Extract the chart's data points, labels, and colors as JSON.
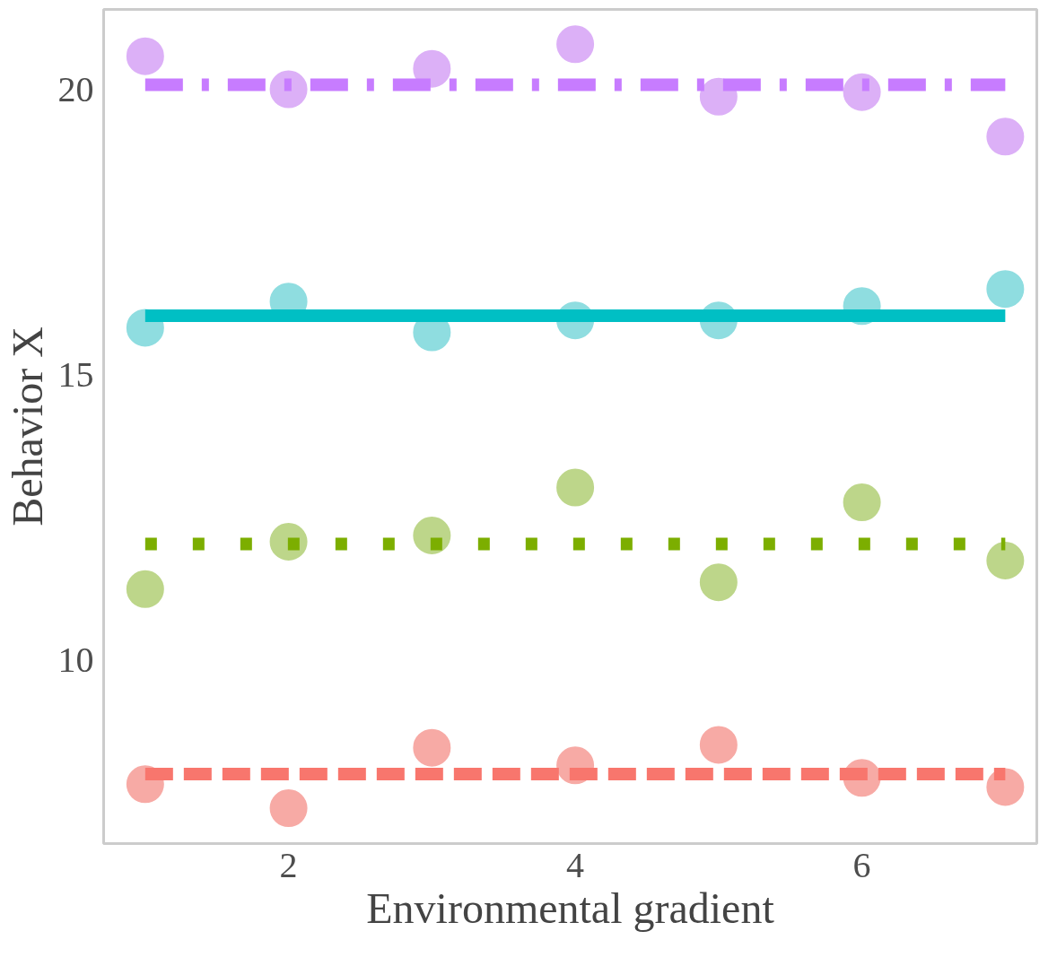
{
  "chart_data": {
    "type": "scatter",
    "xlabel": "Environmental gradient",
    "ylabel": "Behavior X",
    "x": [
      1,
      2,
      3,
      4,
      5,
      6,
      7
    ],
    "xlim": [
      0.71,
      7.22
    ],
    "ylim": [
      6.78,
      21.4
    ],
    "xticks": [
      2,
      4,
      6
    ],
    "yticks": [
      10,
      15,
      20
    ],
    "grid": false,
    "series": [
      {
        "marker": "circle",
        "color": "#dcb0f7",
        "values": [
          20.58,
          20.0,
          20.36,
          20.79,
          19.87,
          19.95,
          19.17
        ]
      },
      {
        "marker": "circle",
        "color": "#8fdde0",
        "values": [
          15.82,
          16.28,
          15.74,
          15.95,
          15.95,
          16.2,
          16.5
        ]
      },
      {
        "marker": "circle",
        "color": "#bdd68a",
        "values": [
          11.24,
          12.07,
          12.18,
          13.02,
          11.36,
          12.76,
          11.74
        ]
      },
      {
        "marker": "circle",
        "color": "#f7aaa5",
        "values": [
          7.82,
          7.4,
          8.46,
          8.15,
          8.51,
          7.93,
          7.77
        ]
      },
      {
        "type": "line",
        "color": "#c77cff",
        "line_style": "dashdot",
        "values": [
          20.08,
          20.08,
          20.08,
          20.08,
          20.08,
          20.08,
          20.08
        ]
      },
      {
        "type": "line",
        "color": "#00bfc4",
        "line_style": "solid",
        "values": [
          16.03,
          16.03,
          16.03,
          16.03,
          16.03,
          16.03,
          16.03
        ]
      },
      {
        "type": "line",
        "color": "#7cae00",
        "line_style": "dotted",
        "values": [
          12.03,
          12.03,
          12.03,
          12.03,
          12.03,
          12.03,
          12.03
        ]
      },
      {
        "type": "line",
        "color": "#f8766d",
        "line_style": "dashed",
        "values": [
          8.0,
          8.0,
          8.0,
          8.0,
          8.0,
          8.0,
          8.0
        ]
      }
    ]
  }
}
